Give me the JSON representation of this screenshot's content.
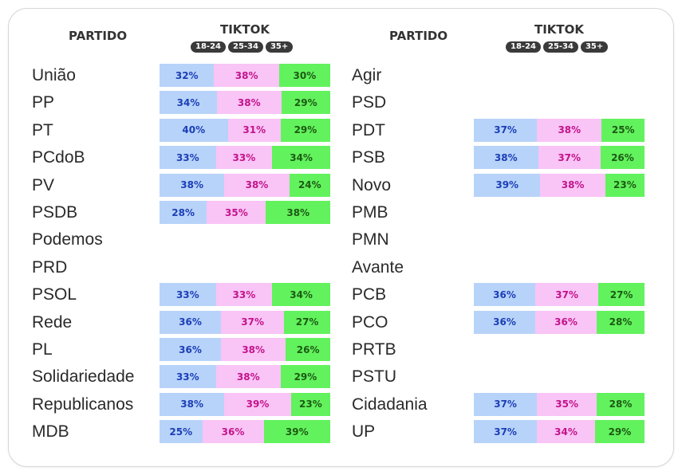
{
  "headers": {
    "partido": "PARTIDO",
    "tiktok": "TIKTOK",
    "age_groups": [
      "18-24",
      "25-34",
      "35+"
    ]
  },
  "colors": {
    "age_18_24": "#b8d3f9",
    "age_25_34": "#f9c4f6",
    "age_35_plus": "#62f25d"
  },
  "chart_data": {
    "type": "bar",
    "stacked": true,
    "orientation": "horizontal",
    "series_names": [
      "18-24",
      "25-34",
      "35+"
    ],
    "left": [
      {
        "party": "União",
        "values": [
          32,
          38,
          30
        ]
      },
      {
        "party": "PP",
        "values": [
          34,
          38,
          29
        ]
      },
      {
        "party": "PT",
        "values": [
          40,
          31,
          29
        ]
      },
      {
        "party": "PCdoB",
        "values": [
          33,
          33,
          34
        ]
      },
      {
        "party": "PV",
        "values": [
          38,
          38,
          24
        ]
      },
      {
        "party": "PSDB",
        "values": [
          28,
          35,
          38
        ]
      },
      {
        "party": "Podemos",
        "values": null
      },
      {
        "party": "PRD",
        "values": null
      },
      {
        "party": "PSOL",
        "values": [
          33,
          33,
          34
        ]
      },
      {
        "party": "Rede",
        "values": [
          36,
          37,
          27
        ]
      },
      {
        "party": "PL",
        "values": [
          36,
          38,
          26
        ]
      },
      {
        "party": "Solidariedade",
        "values": [
          33,
          38,
          29
        ]
      },
      {
        "party": "Republicanos",
        "values": [
          38,
          39,
          23
        ]
      },
      {
        "party": "MDB",
        "values": [
          25,
          36,
          39
        ]
      }
    ],
    "right": [
      {
        "party": "Agir",
        "values": null
      },
      {
        "party": "PSD",
        "values": null
      },
      {
        "party": "PDT",
        "values": [
          37,
          38,
          25
        ]
      },
      {
        "party": "PSB",
        "values": [
          38,
          37,
          26
        ]
      },
      {
        "party": "Novo",
        "values": [
          39,
          38,
          23
        ]
      },
      {
        "party": "PMB",
        "values": null
      },
      {
        "party": "PMN",
        "values": null
      },
      {
        "party": "Avante",
        "values": null
      },
      {
        "party": "PCB",
        "values": [
          36,
          37,
          27
        ]
      },
      {
        "party": "PCO",
        "values": [
          36,
          36,
          28
        ]
      },
      {
        "party": "PRTB",
        "values": null
      },
      {
        "party": "PSTU",
        "values": null
      },
      {
        "party": "Cidadania",
        "values": [
          37,
          35,
          28
        ]
      },
      {
        "party": "UP",
        "values": [
          37,
          34,
          29
        ]
      }
    ]
  }
}
